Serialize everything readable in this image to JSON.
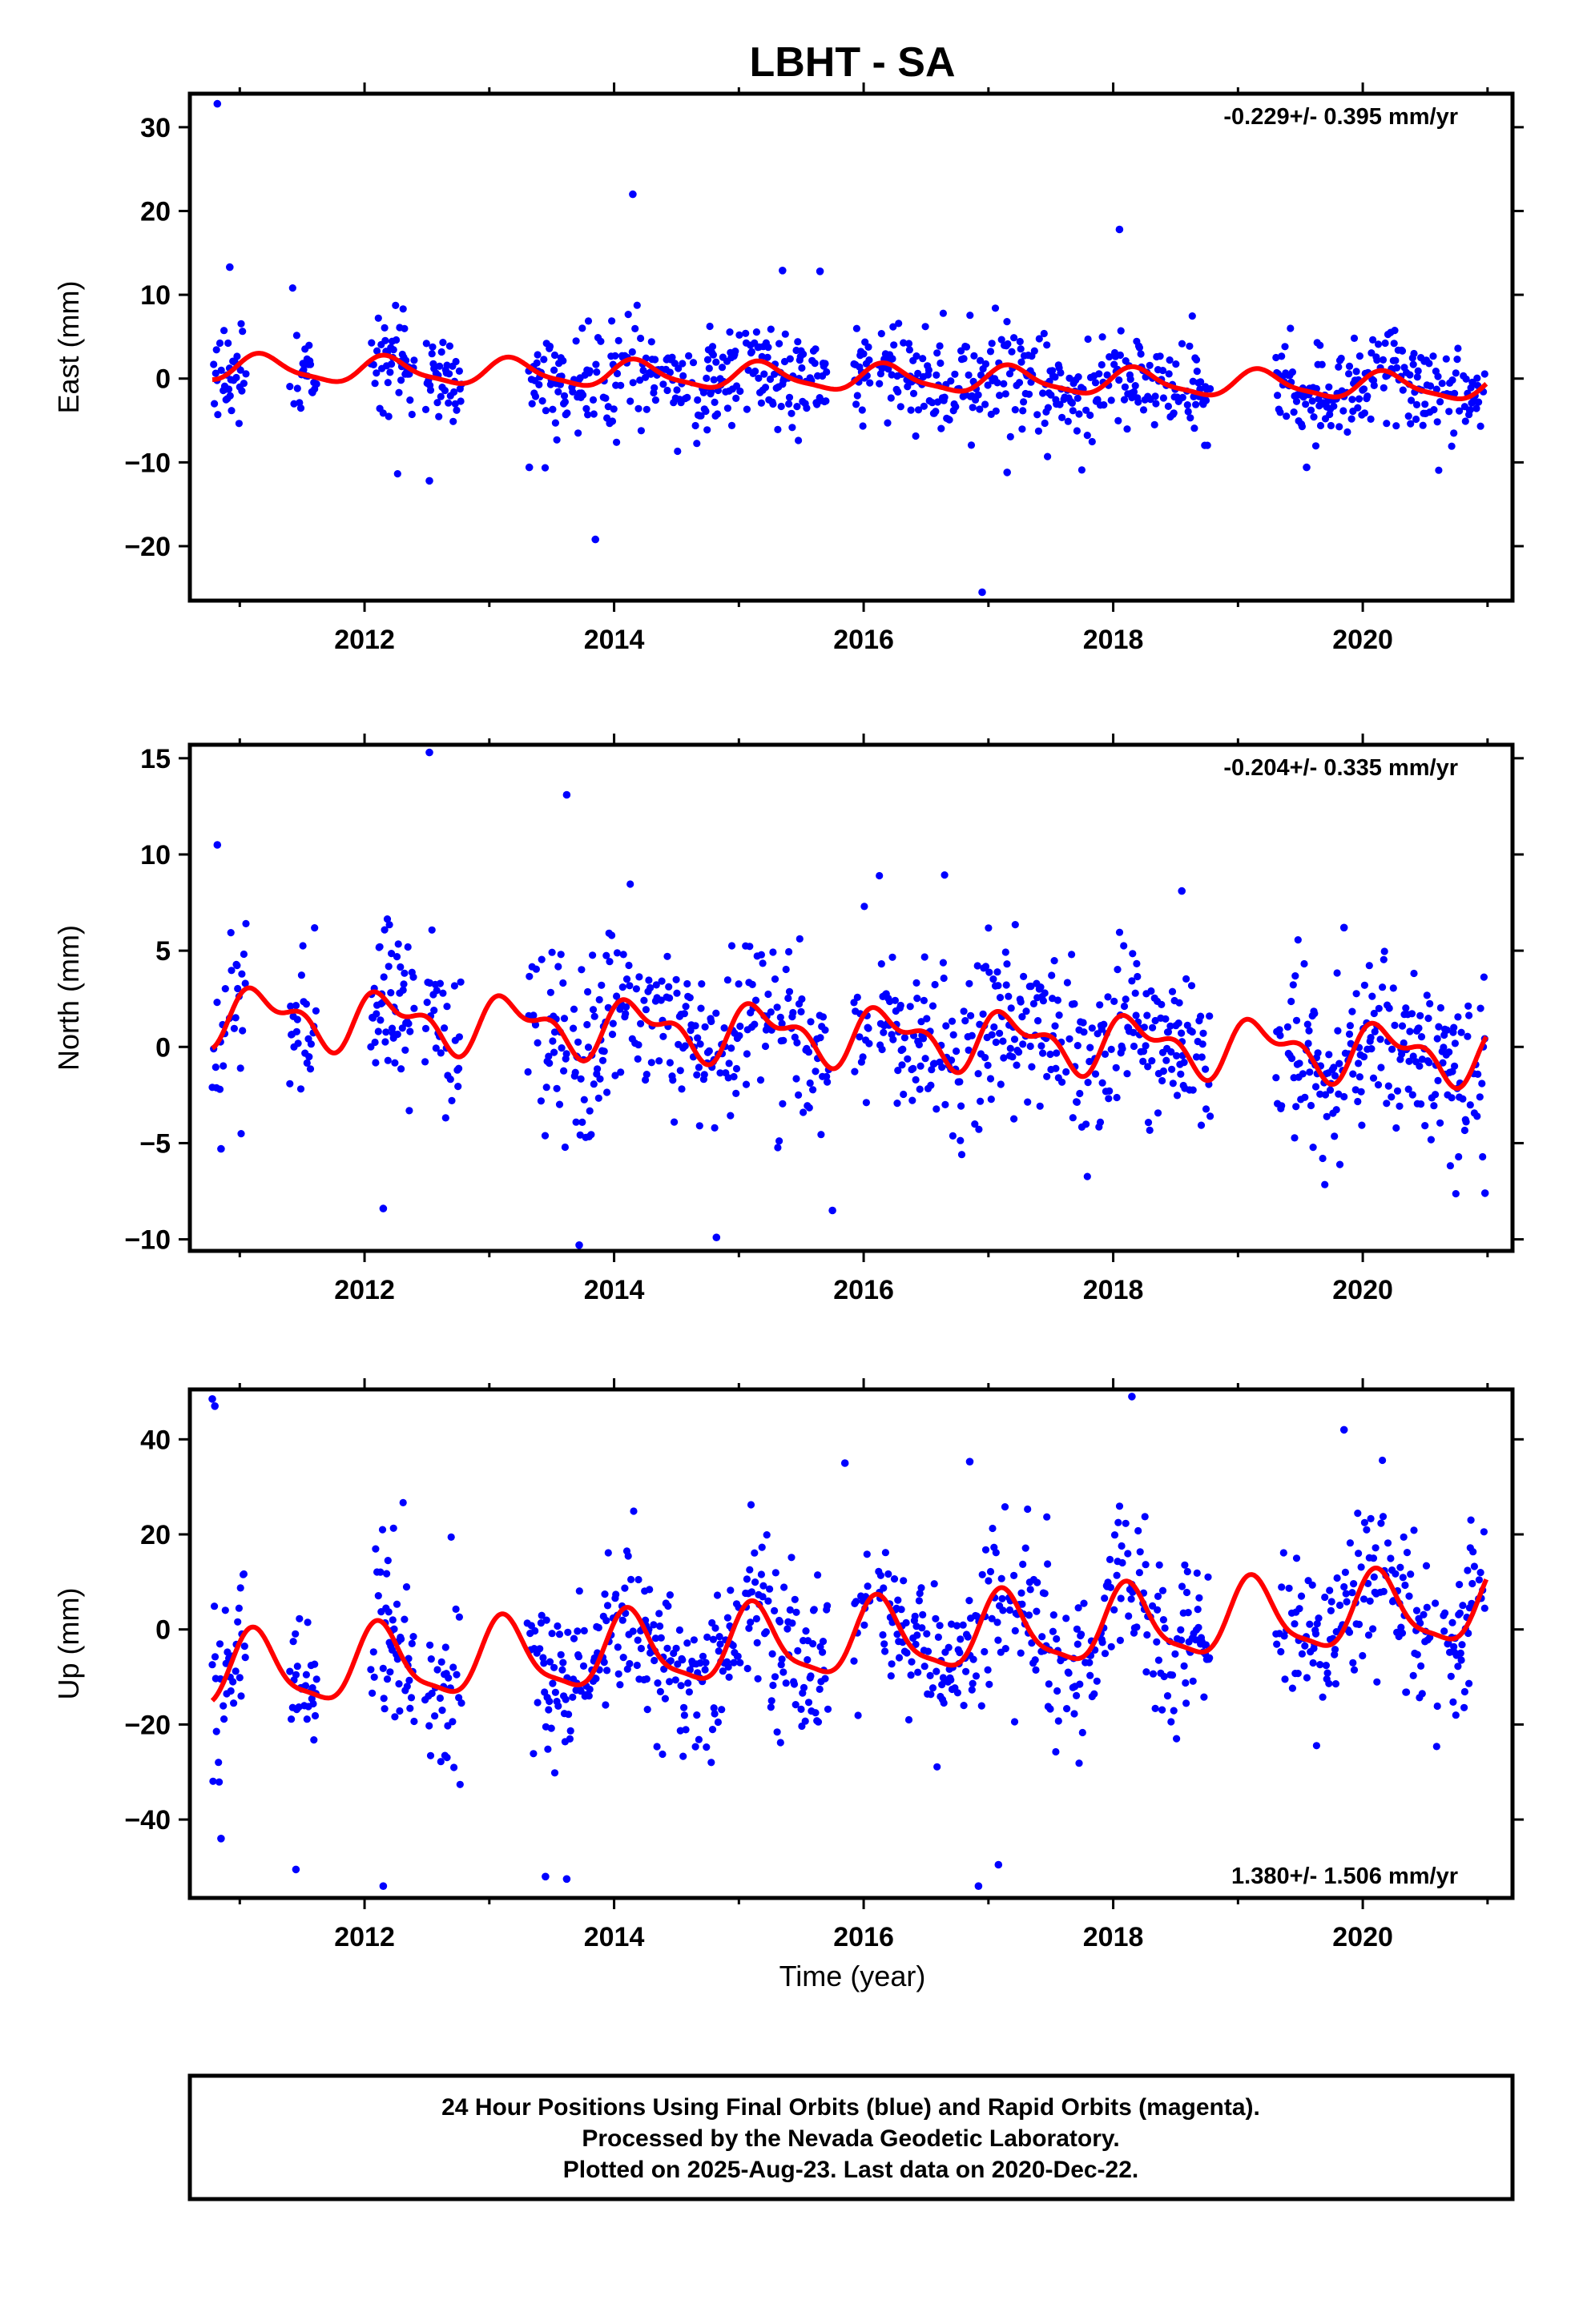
{
  "title": "LBHT - SA",
  "colors": {
    "points": "#0000ff",
    "trend": "#ff0000",
    "frame": "#000000"
  },
  "x_axis": {
    "label": "Time (year)"
  },
  "footer": {
    "lines": [
      "24 Hour Positions Using Final Orbits (blue) and Rapid Orbits (magenta).",
      "Processed by the Nevada Geodetic Laboratory.",
      "Plotted on 2025-Aug-23. Last data on 2020-Dec-22."
    ]
  },
  "chart_data": [
    {
      "type": "scatter",
      "component": "east",
      "ylabel": "East (mm)",
      "xlim": [
        2010.6,
        2021.2
      ],
      "ylim": [
        -26.5,
        34
      ],
      "xticks": [
        2012,
        2014,
        2016,
        2018,
        2020
      ],
      "yticks": [
        -20,
        -10,
        0,
        10,
        20,
        30
      ],
      "rate_text": "-0.229+/- 0.395 mm/yr",
      "rate_position": "top-right",
      "model": {
        "trend": -0.229,
        "offset": 0.3,
        "annual_amp": 1.5,
        "annual_phase": 0.4,
        "semi_amp": 0.4,
        "semi_phase": 0.0
      },
      "scatter_sd": 2.8,
      "outliers": [
        [
          2010.82,
          32.8
        ],
        [
          2010.92,
          13.3
        ],
        [
          2014.15,
          22.0
        ],
        [
          2018.05,
          17.8
        ],
        [
          2013.85,
          -19.2
        ],
        [
          2016.95,
          -25.5
        ],
        [
          2012.52,
          -12.2
        ],
        [
          2013.32,
          -10.6
        ],
        [
          2017.15,
          -11.2
        ],
        [
          2019.55,
          -10.6
        ],
        [
          2015.35,
          12.9
        ],
        [
          2015.65,
          12.8
        ]
      ]
    },
    {
      "type": "scatter",
      "component": "north",
      "ylabel": "North (mm)",
      "xlim": [
        2010.6,
        2021.2
      ],
      "ylim": [
        -10.6,
        15.7
      ],
      "xticks": [
        2012,
        2014,
        2016,
        2018,
        2020
      ],
      "yticks": [
        -10,
        -5,
        0,
        5,
        10,
        15
      ],
      "rate_text": "-0.204+/- 0.335 mm/yr",
      "rate_position": "top-right",
      "model": {
        "trend": -0.204,
        "offset": 0.8,
        "annual_amp": 1.2,
        "annual_phase": 0.35,
        "semi_amp": 0.7,
        "semi_phase": 1.2
      },
      "scatter_sd": 2.2,
      "outliers": [
        [
          2010.82,
          10.5
        ],
        [
          2012.52,
          15.3
        ],
        [
          2013.62,
          13.1
        ],
        [
          2018.55,
          8.1
        ],
        [
          2012.15,
          -8.4
        ],
        [
          2013.72,
          -10.3
        ],
        [
          2014.82,
          -9.9
        ],
        [
          2015.75,
          -8.5
        ],
        [
          2020.98,
          -7.6
        ],
        [
          2010.85,
          -5.3
        ],
        [
          2019.85,
          6.2
        ]
      ]
    },
    {
      "type": "scatter",
      "component": "up",
      "ylabel": "Up (mm)",
      "xlim": [
        2010.6,
        2021.2
      ],
      "ylim": [
        -56.5,
        50.5
      ],
      "xticks": [
        2012,
        2014,
        2016,
        2018,
        2020
      ],
      "yticks": [
        -40,
        -20,
        0,
        20,
        40
      ],
      "rate_text": "1.380+/- 1.506 mm/yr",
      "rate_position": "bottom-right",
      "model": {
        "trend": 1.38,
        "offset": -3.5,
        "annual_amp": 7.5,
        "annual_phase": 0.8,
        "semi_amp": 2.0,
        "semi_phase": 0.5
      },
      "scatter_sd": 8.5,
      "outliers": [
        [
          2010.78,
          48.5
        ],
        [
          2010.8,
          47.0
        ],
        [
          2018.15,
          49.0
        ],
        [
          2010.85,
          -44.0
        ],
        [
          2012.15,
          -54.0
        ],
        [
          2016.92,
          -54.0
        ],
        [
          2017.08,
          -49.5
        ],
        [
          2013.45,
          -52.0
        ],
        [
          2013.62,
          -52.5
        ],
        [
          2015.85,
          35.0
        ],
        [
          2016.85,
          35.3
        ],
        [
          2019.85,
          42.0
        ],
        [
          2011.45,
          -50.5
        ]
      ]
    }
  ],
  "data_gaps": [
    [
      2011.05,
      2011.4
    ],
    [
      2011.62,
      2012.05
    ],
    [
      2012.4,
      2012.48
    ],
    [
      2012.78,
      2013.3
    ],
    [
      2015.02,
      2015.05
    ],
    [
      2015.72,
      2015.92
    ],
    [
      2016.05,
      2016.12
    ],
    [
      2018.78,
      2019.3
    ]
  ]
}
